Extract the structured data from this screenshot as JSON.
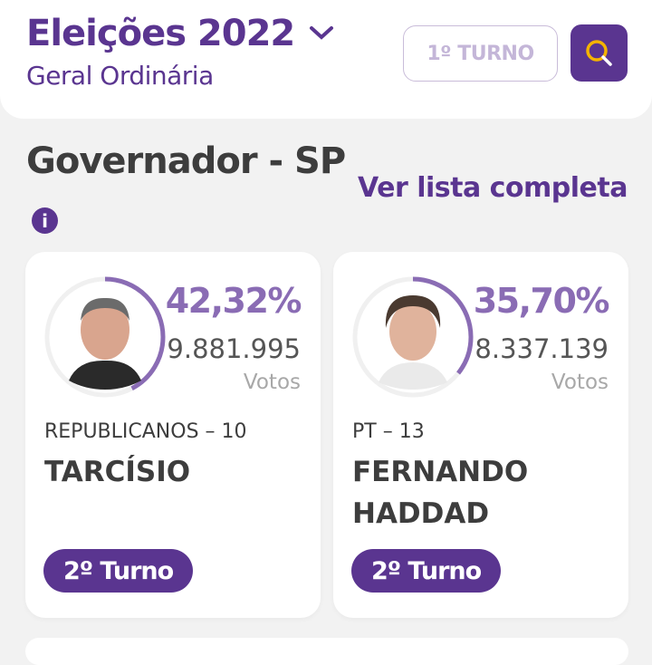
{
  "header": {
    "title": "Eleições 2022",
    "subtitle": "Geral Ordinária",
    "turno_button": "1º TURNO",
    "search_icon": "search-icon"
  },
  "section": {
    "title": "Governador - SP",
    "see_all": "Ver lista completa",
    "info_icon": "i"
  },
  "colors": {
    "brand": "#5a3590",
    "accent": "#8a6cb4",
    "search_glass": "#f5b400"
  },
  "candidates": [
    {
      "percent": "42,32%",
      "percent_value": 42.32,
      "votes": "9.881.995",
      "votes_label": "Votos",
      "party": "REPUBLICANOS – 10",
      "name": "TARCÍSIO",
      "status": "2º Turno"
    },
    {
      "percent": "35,70%",
      "percent_value": 35.7,
      "votes": "8.337.139",
      "votes_label": "Votos",
      "party": "PT – 13",
      "name": "FERNANDO HADDAD",
      "status": "2º Turno"
    }
  ]
}
